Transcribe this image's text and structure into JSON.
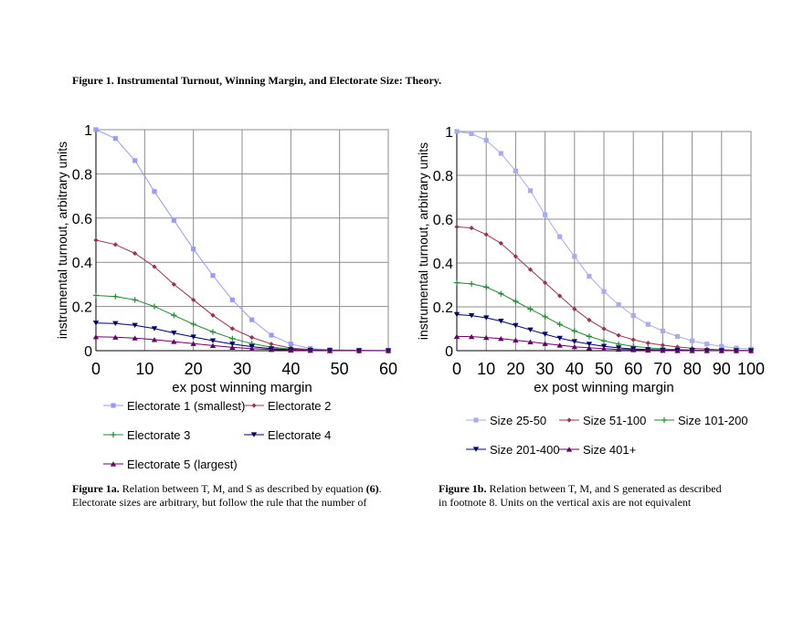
{
  "figure": {
    "title": "Figure 1.  Instrumental Turnout, Winning Margin, and Electorate Size: Theory."
  },
  "captions": {
    "a": {
      "label": "Figure 1a.",
      "text": "  Relation between T, M, and S as described by equation ",
      "eq": "(6)",
      "tail": ".",
      "line2": "Electorate sizes are arbitrary, but follow the rule that the number of"
    },
    "b": {
      "label": "Figure 1b.",
      "text": "  Relation between T, M, and S generated as described",
      "line2": "in footnote 8.  Units on the vertical axis are not equivalent"
    }
  },
  "chart_data": [
    {
      "type": "line",
      "xlabel": "ex post winning margin",
      "ylabel": "instrumental turnout, arbitrary units",
      "xlim": [
        0,
        60
      ],
      "ylim": [
        0,
        1
      ],
      "x_ticks": [
        0,
        10,
        20,
        30,
        40,
        50,
        60
      ],
      "x_tick_labels": [
        "0",
        "10",
        "20",
        "30",
        "40",
        "50",
        "60"
      ],
      "y_ticks": [
        0,
        0.2,
        0.4,
        0.6,
        0.8,
        1
      ],
      "y_tick_labels": [
        "0",
        "0.2",
        "0.4",
        "0.6",
        "0.8",
        "1"
      ],
      "grid": true,
      "legend_position": "bottom",
      "x": [
        0,
        4,
        8,
        12,
        16,
        20,
        24,
        28,
        32,
        36,
        40,
        44,
        48,
        54,
        60
      ],
      "series": [
        {
          "name": "Electorate 1 (smallest)",
          "color": "#9999ff",
          "marker": "square",
          "values": [
            1.0,
            0.96,
            0.86,
            0.72,
            0.59,
            0.46,
            0.34,
            0.23,
            0.14,
            0.07,
            0.03,
            0.01,
            0.004,
            0.002,
            0.001
          ]
        },
        {
          "name": "Electorate 2",
          "color": "#993355",
          "marker": "diamond",
          "values": [
            0.5,
            0.48,
            0.44,
            0.38,
            0.3,
            0.23,
            0.16,
            0.1,
            0.06,
            0.03,
            0.012,
            0.005,
            0.002,
            0.001,
            0.0
          ]
        },
        {
          "name": "Electorate 3",
          "color": "#228833",
          "marker": "plus",
          "values": [
            0.25,
            0.245,
            0.23,
            0.2,
            0.16,
            0.12,
            0.085,
            0.055,
            0.032,
            0.016,
            0.007,
            0.003,
            0.001,
            0.0,
            0.0
          ]
        },
        {
          "name": "Electorate 4",
          "color": "#000066",
          "marker": "triangle-down",
          "values": [
            0.125,
            0.123,
            0.115,
            0.1,
            0.08,
            0.062,
            0.045,
            0.03,
            0.018,
            0.009,
            0.004,
            0.0015,
            0.0005,
            0.0,
            0.0
          ]
        },
        {
          "name": "Electorate 5 (largest)",
          "color": "#660066",
          "marker": "triangle-up",
          "values": [
            0.063,
            0.061,
            0.057,
            0.05,
            0.041,
            0.032,
            0.023,
            0.015,
            0.009,
            0.005,
            0.002,
            0.001,
            0.0,
            0.0,
            0.0
          ]
        }
      ]
    },
    {
      "type": "line",
      "xlabel": "ex post winning margin",
      "ylabel": "instrumental turnout, arbitrary units",
      "xlim": [
        0,
        100
      ],
      "ylim": [
        0,
        1
      ],
      "x_ticks": [
        0,
        10,
        20,
        30,
        40,
        50,
        60,
        70,
        80,
        90,
        100
      ],
      "x_tick_labels": [
        "0",
        "10",
        "20",
        "30",
        "40",
        "50",
        "60",
        "70",
        "80",
        "90",
        "100"
      ],
      "y_ticks": [
        0,
        0.2,
        0.4,
        0.6,
        0.8,
        1
      ],
      "y_tick_labels": [
        "0",
        "0.2",
        "0.4",
        "0.6",
        "0.8",
        "1"
      ],
      "grid": true,
      "legend_position": "bottom",
      "x": [
        0,
        5,
        10,
        15,
        20,
        25,
        30,
        35,
        40,
        45,
        50,
        55,
        60,
        65,
        70,
        75,
        80,
        85,
        90,
        95,
        100
      ],
      "series": [
        {
          "name": "Size 25-50",
          "color": "#aaaaee",
          "marker": "square",
          "values": [
            1.0,
            0.99,
            0.96,
            0.9,
            0.82,
            0.73,
            0.62,
            0.52,
            0.43,
            0.34,
            0.27,
            0.21,
            0.16,
            0.12,
            0.09,
            0.065,
            0.045,
            0.03,
            0.02,
            0.012,
            0.008
          ]
        },
        {
          "name": "Size 51-100",
          "color": "#993355",
          "marker": "diamond",
          "values": [
            0.565,
            0.56,
            0.53,
            0.49,
            0.43,
            0.37,
            0.31,
            0.25,
            0.19,
            0.14,
            0.1,
            0.07,
            0.05,
            0.035,
            0.025,
            0.017,
            0.011,
            0.007,
            0.004,
            0.002,
            0.001
          ]
        },
        {
          "name": "Size 101-200",
          "color": "#228833",
          "marker": "plus",
          "values": [
            0.31,
            0.305,
            0.29,
            0.26,
            0.225,
            0.19,
            0.155,
            0.12,
            0.09,
            0.065,
            0.045,
            0.03,
            0.02,
            0.013,
            0.008,
            0.005,
            0.003,
            0.002,
            0.001,
            0.0,
            0.0
          ]
        },
        {
          "name": "Size 201-400",
          "color": "#000066",
          "marker": "triangle-down",
          "values": [
            0.165,
            0.16,
            0.15,
            0.135,
            0.115,
            0.095,
            0.075,
            0.057,
            0.042,
            0.03,
            0.02,
            0.013,
            0.008,
            0.005,
            0.003,
            0.002,
            0.001,
            0.0,
            0.0,
            0.0,
            0.0
          ]
        },
        {
          "name": "Size 401+",
          "color": "#660066",
          "marker": "triangle-up",
          "values": [
            0.065,
            0.064,
            0.06,
            0.055,
            0.048,
            0.04,
            0.032,
            0.025,
            0.018,
            0.013,
            0.009,
            0.006,
            0.004,
            0.002,
            0.001,
            0.0,
            0.0,
            0.0,
            0.0,
            0.0,
            0.0
          ]
        }
      ]
    }
  ]
}
